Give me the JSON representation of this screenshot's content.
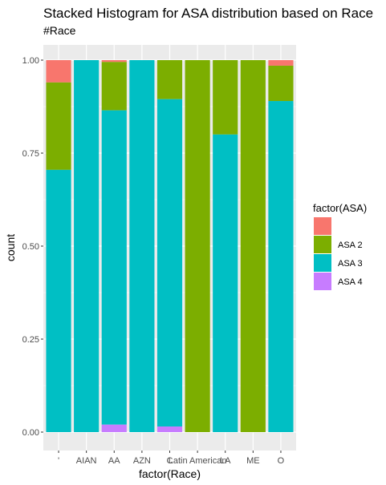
{
  "chart_data": {
    "type": "bar",
    "stacked": true,
    "title": "Stacked Histogram for ASA distribution based on Race",
    "subtitle": "#Race",
    "xlabel": "factor(Race)",
    "ylabel": "count",
    "ylim": [
      0,
      1
    ],
    "y_ticks": [
      "0.00",
      "0.25",
      "0.50",
      "0.75",
      "1.00"
    ],
    "categories": [
      "'",
      "AIAN",
      "AA",
      "AZN",
      "C",
      "Latin American",
      "LA",
      "ME",
      "O"
    ],
    "legend_title": "factor(ASA)",
    "legend_position": "right",
    "grid": true,
    "series": [
      {
        "key": "blank",
        "name": "",
        "color": "#F8766D",
        "values": [
          0.06,
          0.0,
          0.005,
          0.0,
          0.0,
          0.0,
          0.0,
          0.0,
          0.015
        ]
      },
      {
        "key": "asa2",
        "name": "ASA 2",
        "color": "#7CAE00",
        "values": [
          0.235,
          0.0,
          0.13,
          0.0,
          0.105,
          1.0,
          0.2,
          1.0,
          0.095
        ]
      },
      {
        "key": "asa3",
        "name": "ASA 3",
        "color": "#00BFC4",
        "values": [
          0.705,
          1.0,
          0.845,
          1.0,
          0.88,
          0.0,
          0.8,
          0.0,
          0.89
        ]
      },
      {
        "key": "asa4",
        "name": "ASA 4",
        "color": "#C77CFF",
        "values": [
          0.0,
          0.0,
          0.02,
          0.0,
          0.015,
          0.0,
          0.0,
          0.0,
          0.0
        ]
      }
    ]
  }
}
